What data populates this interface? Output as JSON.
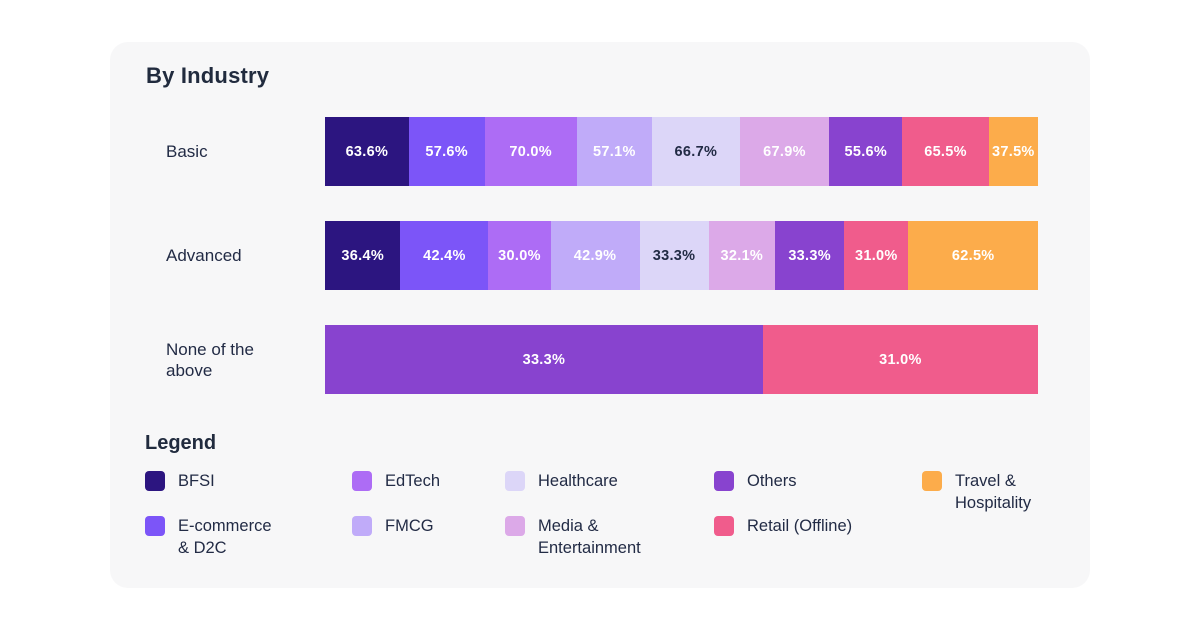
{
  "page": {
    "background": "#FFFFFF",
    "card_background": "#F7F7F8",
    "text_color": "#222B45"
  },
  "chart": {
    "title": "By Industry",
    "legend_title": "Legend"
  },
  "chart_data": {
    "type": "bar",
    "subtype": "horizontal_stacked",
    "title": "By Industry",
    "grid": false,
    "axes_shown": false,
    "legend_position": "bottom",
    "value_suffix": "%",
    "industries": [
      {
        "name": "BFSI",
        "color": "#2C1580",
        "text_color": "#FFFFFF"
      },
      {
        "name": "E-commerce & D2C",
        "legend_label": "E-commerce\n& D2C",
        "color": "#7C55F8",
        "text_color": "#FFFFFF"
      },
      {
        "name": "EdTech",
        "color": "#AD6CF5",
        "text_color": "#FFFFFF"
      },
      {
        "name": "FMCG",
        "color": "#C0ABF9",
        "text_color": "#FFFFFF"
      },
      {
        "name": "Healthcare",
        "color": "#DCD6F8",
        "text_color": "#222B45"
      },
      {
        "name": "Media & Entertainment",
        "legend_label": "Media &\nEntertainment",
        "color": "#DCA9E8",
        "text_color": "#FFFFFF"
      },
      {
        "name": "Others",
        "color": "#8843CF",
        "text_color": "#FFFFFF"
      },
      {
        "name": "Retail (Offline)",
        "color": "#F05C8C",
        "text_color": "#FFFFFF"
      },
      {
        "name": "Travel & Hospitality",
        "legend_label": "Travel &\nHospitality",
        "color": "#FCAC4B",
        "text_color": "#FFFFFF"
      }
    ],
    "rows": [
      {
        "label": "Basic",
        "segments": [
          {
            "industry": "BFSI",
            "value": 63.6,
            "label": "63.6%",
            "weight": 63.6
          },
          {
            "industry": "E-commerce & D2C",
            "value": 57.6,
            "label": "57.6%",
            "weight": 57.6
          },
          {
            "industry": "EdTech",
            "value": 70.0,
            "label": "70.0%",
            "weight": 70.0
          },
          {
            "industry": "FMCG",
            "value": 57.1,
            "label": "57.1%",
            "weight": 57.1
          },
          {
            "industry": "Healthcare",
            "value": 66.7,
            "label": "66.7%",
            "weight": 66.7
          },
          {
            "industry": "Media & Entertainment",
            "value": 67.9,
            "label": "67.9%",
            "weight": 67.9
          },
          {
            "industry": "Others",
            "value": 55.6,
            "label": "55.6%",
            "weight": 55.6
          },
          {
            "industry": "Retail (Offline)",
            "value": 65.5,
            "label": "65.5%",
            "weight": 65.5
          },
          {
            "industry": "Travel & Hospitality",
            "value": 37.5,
            "label": "37.5%",
            "weight": 37.5
          }
        ]
      },
      {
        "label": "Advanced",
        "segments": [
          {
            "industry": "BFSI",
            "value": 36.4,
            "label": "36.4%",
            "weight": 36.4
          },
          {
            "industry": "E-commerce & D2C",
            "value": 42.4,
            "label": "42.4%",
            "weight": 42.4
          },
          {
            "industry": "EdTech",
            "value": 30.0,
            "label": "30.0%",
            "weight": 30.0
          },
          {
            "industry": "FMCG",
            "value": 42.9,
            "label": "42.9%",
            "weight": 42.9
          },
          {
            "industry": "Healthcare",
            "value": 33.3,
            "label": "33.3%",
            "weight": 33.3
          },
          {
            "industry": "Media & Entertainment",
            "value": 32.1,
            "label": "32.1%",
            "weight": 32.1
          },
          {
            "industry": "Others",
            "value": 33.3,
            "label": "33.3%",
            "weight": 33.3
          },
          {
            "industry": "Retail (Offline)",
            "value": 31.0,
            "label": "31.0%",
            "weight": 31.0
          },
          {
            "industry": "Travel & Hospitality",
            "value": 62.5,
            "label": "62.5%",
            "weight": 62.5
          }
        ]
      },
      {
        "label": "None of the\nabove",
        "segments": [
          {
            "industry": "Others",
            "value": 33.3,
            "label": "33.3%",
            "weight": 61.4
          },
          {
            "industry": "Retail (Offline)",
            "value": 31.0,
            "label": "31.0%",
            "weight": 38.6
          }
        ]
      }
    ]
  }
}
